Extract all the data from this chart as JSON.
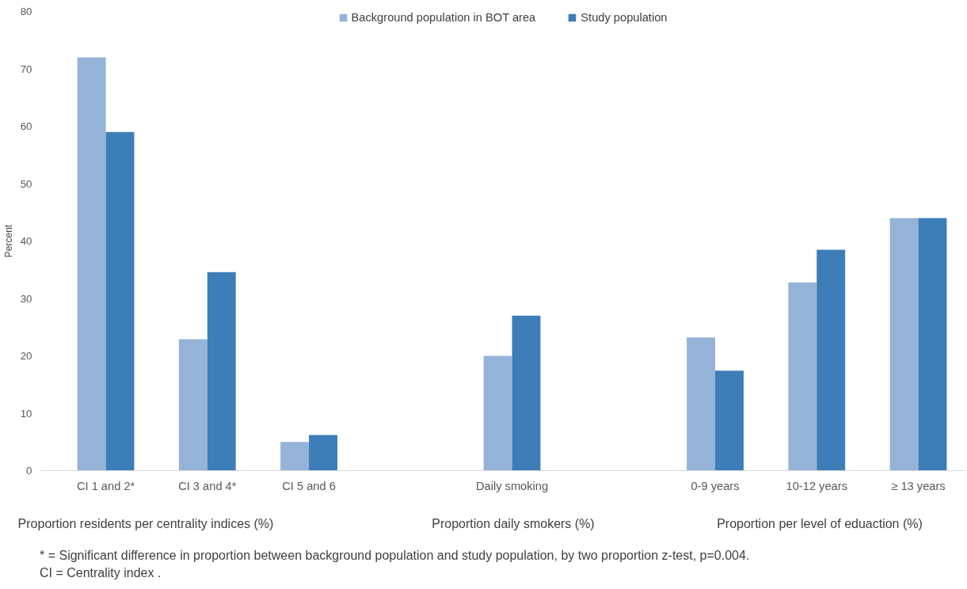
{
  "chart_data": {
    "type": "bar",
    "ylabel": "Percent",
    "categories": [
      "CI 1 and 2*",
      "CI 3 and 4*",
      "CI 5 and 6",
      null,
      "Daily smoking",
      null,
      "0-9 years",
      "10-12 years",
      "≥ 13 years"
    ],
    "series": [
      {
        "name": "Background population in BOT area",
        "color": "#95b3d7",
        "values": [
          72.0,
          22.9,
          5.0,
          null,
          20.0,
          null,
          23.2,
          32.8,
          44.0
        ]
      },
      {
        "name": "Study population",
        "color": "#3d7db8",
        "values": [
          59.0,
          34.6,
          6.2,
          null,
          27.0,
          null,
          17.4,
          38.5,
          44.0
        ]
      }
    ],
    "ylim": [
      0,
      80
    ],
    "yticks": [
      0,
      10,
      20,
      30,
      40,
      50,
      60,
      70,
      80
    ],
    "grid": false,
    "legend": "top",
    "annotations": [
      "Proportion residents per centrality indices (%)",
      "Proportion daily smokers (%)",
      "Proportion per level of eduaction (%)",
      "* = Significant difference in proportion between background population and study population, by two proportion z-test, p=0.004.",
      "CI = Centrality index ."
    ]
  }
}
